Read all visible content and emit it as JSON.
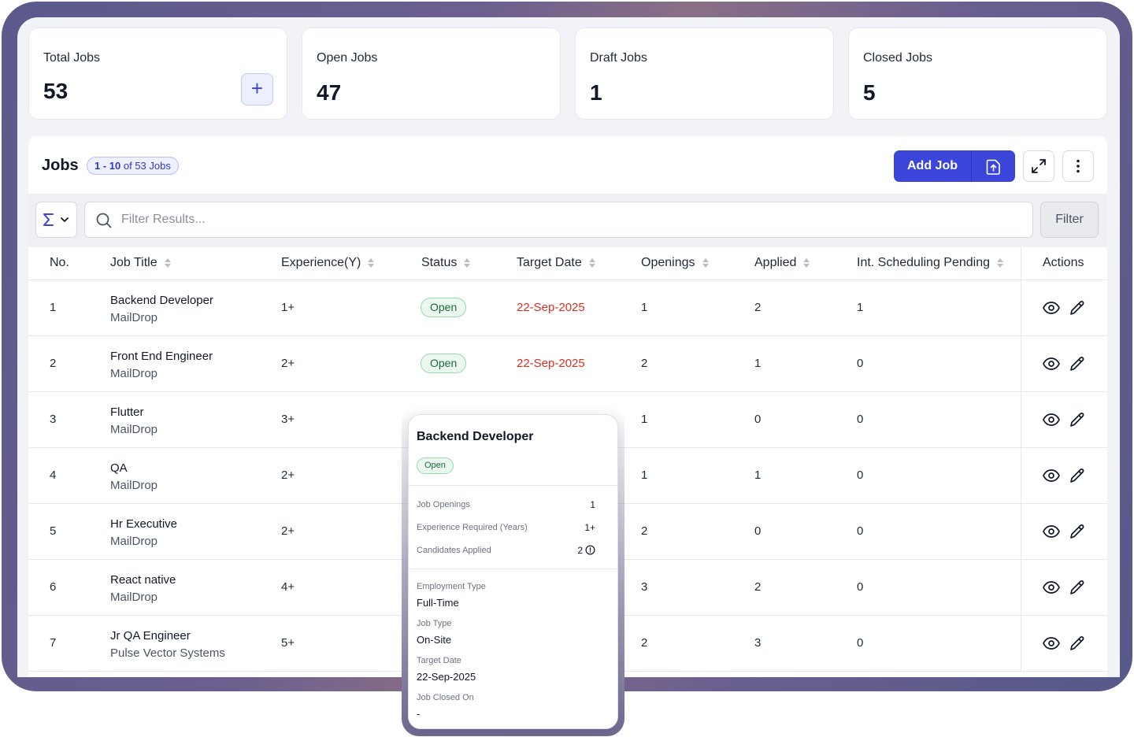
{
  "stats": [
    {
      "label": "Total Jobs",
      "value": "53"
    },
    {
      "label": "Open Jobs",
      "value": "47"
    },
    {
      "label": "Draft Jobs",
      "value": "1"
    },
    {
      "label": "Closed Jobs",
      "value": "5"
    }
  ],
  "panel": {
    "title": "Jobs",
    "count_badge": {
      "range": "1 - 10",
      "suffix": "of 53 Jobs"
    },
    "add_job_label": "Add Job",
    "filter_label": "Filter",
    "search_placeholder": "Filter Results..."
  },
  "columns": {
    "no": "No.",
    "job_title": "Job Title",
    "experience": "Experience(Y)",
    "status": "Status",
    "target_date": "Target Date",
    "openings": "Openings",
    "applied": "Applied",
    "int_scheduling": "Int. Scheduling Pending",
    "actions": "Actions"
  },
  "rows": [
    {
      "no": "1",
      "title": "Backend Developer",
      "company": "MailDrop",
      "experience": "1+",
      "status": "Open",
      "target_date": "22-Sep-2025",
      "openings": "1",
      "applied": "2",
      "pending": "1"
    },
    {
      "no": "2",
      "title": "Front End Engineer",
      "company": "MailDrop",
      "experience": "2+",
      "status": "Open",
      "target_date": "22-Sep-2025",
      "openings": "2",
      "applied": "1",
      "pending": "0"
    },
    {
      "no": "3",
      "title": "Flutter",
      "company": "MailDrop",
      "experience": "3+",
      "openings": "1",
      "applied": "0",
      "pending": "0"
    },
    {
      "no": "4",
      "title": "QA",
      "company": "MailDrop",
      "experience": "2+",
      "openings": "1",
      "applied": "1",
      "pending": "0"
    },
    {
      "no": "5",
      "title": "Hr Executive",
      "company": "MailDrop",
      "experience": "2+",
      "openings": "2",
      "applied": "0",
      "pending": "0"
    },
    {
      "no": "6",
      "title": "React native",
      "company": "MailDrop",
      "experience": "4+",
      "openings": "3",
      "applied": "2",
      "pending": "0"
    },
    {
      "no": "7",
      "title": "Jr QA Engineer",
      "company": "Pulse Vector Systems",
      "experience": "5+",
      "openings": "2",
      "applied": "3",
      "pending": "0"
    }
  ],
  "popup": {
    "title": "Backend Developer",
    "status": "Open",
    "job_openings_label": "Job Openings",
    "job_openings": "1",
    "experience_label": "Experience Required (Years)",
    "experience": "1+",
    "applied_label": "Candidates Applied",
    "applied": "2",
    "employment_type_label": "Employment Type",
    "employment_type": "Full-Time",
    "job_type_label": "Job Type",
    "job_type": "On-Site",
    "target_date_label": "Target Date",
    "target_date": "22-Sep-2025",
    "closed_on_label": "Job Closed On",
    "closed_on": "-"
  },
  "colors": {
    "accent": "#3c45d9",
    "status_green": "#1d6b3a",
    "date_red": "#d93025",
    "frame": "#5b5a8c"
  },
  "icons": [
    "plus-icon",
    "upload-file-icon",
    "expand-icon",
    "more-vertical-icon",
    "sigma-icon",
    "chevron-down-icon",
    "search-icon",
    "sort-icon",
    "eye-icon",
    "pencil-icon",
    "info-icon"
  ]
}
